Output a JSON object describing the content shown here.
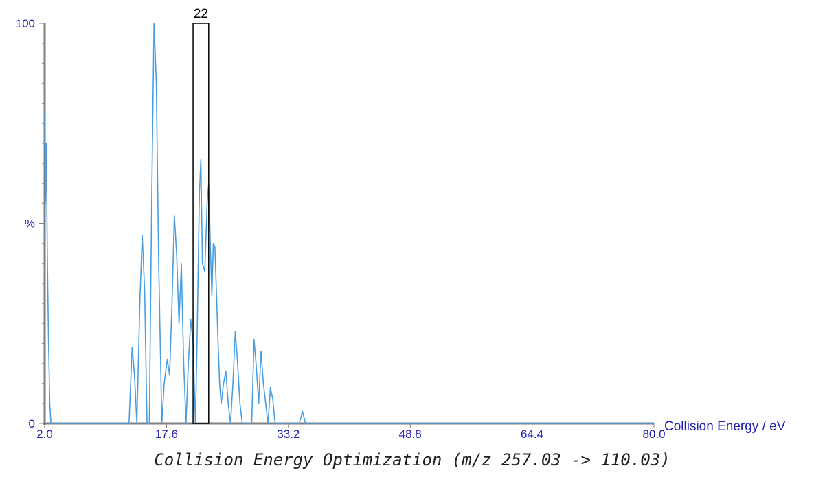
{
  "chart_data": {
    "type": "line",
    "title": "Collision Energy Optimization (m/z 257.03 -> 110.03)",
    "xlabel": "Collision Energy / eV",
    "ylabel": "%",
    "xlim": [
      2.0,
      80.0
    ],
    "ylim": [
      0,
      100
    ],
    "x_ticks": [
      "2.0",
      "17.6",
      "33.2",
      "48.8",
      "64.4",
      "80.0"
    ],
    "y_ticks": [
      "0",
      "%",
      "100"
    ],
    "marker": {
      "label": "22",
      "x": 22,
      "width": 2
    },
    "colors": {
      "series": "#4a9ee0",
      "axis": "#808080",
      "text": "#2020b0",
      "marker": "#000000"
    },
    "series": [
      {
        "x": [
          2.0,
          2.1,
          2.2,
          2.35,
          2.5,
          2.65,
          2.8,
          3.0,
          3.2,
          3.4,
          5.0,
          8.0,
          11.0,
          12.8,
          13.2,
          13.5,
          13.8,
          14.2,
          14.5,
          14.8,
          15.1,
          15.4,
          15.7,
          16.0,
          16.3,
          16.6,
          17.0,
          17.3,
          17.7,
          18.0,
          18.3,
          18.6,
          18.9,
          19.2,
          19.5,
          19.8,
          20.1,
          20.4,
          20.7,
          21.0,
          21.3,
          21.5,
          21.8,
          22.0,
          22.2,
          22.5,
          22.8,
          23.0,
          23.2,
          23.4,
          23.6,
          23.8,
          24.0,
          24.2,
          24.4,
          24.6,
          24.9,
          25.2,
          25.5,
          25.8,
          26.1,
          26.4,
          26.7,
          27.0,
          27.3,
          27.6,
          27.9,
          28.2,
          28.5,
          28.8,
          29.1,
          29.4,
          29.7,
          30.0,
          30.3,
          30.6,
          30.9,
          31.2,
          31.5,
          31.8,
          32.1,
          32.4,
          32.8,
          33.2,
          34.6,
          35.0,
          35.4,
          35.8,
          40.0,
          50.0,
          60.0,
          70.0,
          80.0
        ],
        "y": [
          78,
          55,
          70,
          40,
          20,
          5,
          0,
          0,
          0,
          0,
          0,
          0,
          0,
          0,
          19,
          12,
          0,
          31,
          47,
          33,
          0,
          0,
          55,
          100,
          85,
          40,
          0,
          10,
          16,
          12,
          30,
          52,
          42,
          25,
          40,
          15,
          0,
          15,
          26,
          20,
          0,
          20,
          57,
          66,
          40,
          38,
          55,
          60,
          45,
          32,
          45,
          44,
          32,
          20,
          10,
          5,
          10,
          13,
          5,
          0,
          10,
          23,
          15,
          5,
          0,
          0,
          0,
          0,
          0,
          21,
          14,
          5,
          18,
          10,
          5,
          0,
          9,
          6,
          0,
          0,
          0,
          0,
          0,
          0,
          0,
          3,
          0,
          0,
          0,
          0,
          0,
          0,
          0
        ]
      }
    ]
  }
}
